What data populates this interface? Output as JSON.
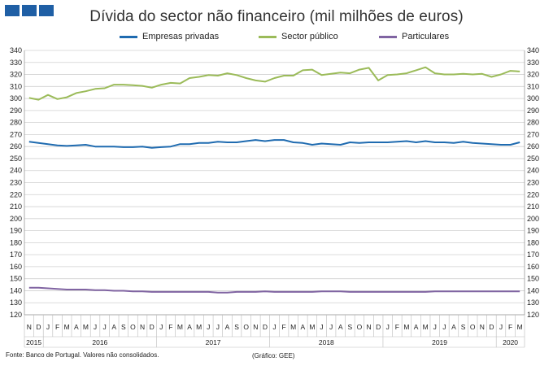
{
  "header": {
    "logo_colors": [
      "#1f5fa5",
      "#1f5fa5",
      "#1f5fa5"
    ],
    "title": "Dívida do sector não financeiro (mil milhões de euros)"
  },
  "footer": {
    "source": "Fonte: Banco de Portugal. Valores não consolidados.",
    "credit": "(Gráfico: GEE)"
  },
  "chart_data": {
    "type": "line",
    "title": "Dívida do sector não financeiro (mil milhões de euros)",
    "ylim": [
      120,
      340
    ],
    "ytick_step": 10,
    "grid": true,
    "legend_position": "top",
    "month_labels": [
      "N",
      "D",
      "J",
      "F",
      "M",
      "A",
      "M",
      "J",
      "J",
      "A",
      "S",
      "O",
      "N",
      "D",
      "J",
      "F",
      "M",
      "A",
      "M",
      "J",
      "J",
      "A",
      "S",
      "O",
      "N",
      "D",
      "J",
      "F",
      "M",
      "A",
      "M",
      "J",
      "J",
      "A",
      "S",
      "O",
      "N",
      "D",
      "J",
      "F",
      "M",
      "A",
      "M",
      "J",
      "J",
      "A",
      "S",
      "O",
      "N",
      "D",
      "J",
      "F",
      "M"
    ],
    "year_labels": [
      {
        "label": "2015",
        "start": 0,
        "end": 1
      },
      {
        "label": "2016",
        "start": 2,
        "end": 13
      },
      {
        "label": "2017",
        "start": 14,
        "end": 25
      },
      {
        "label": "2018",
        "start": 26,
        "end": 37
      },
      {
        "label": "2019",
        "start": 38,
        "end": 49
      },
      {
        "label": "2020",
        "start": 50,
        "end": 52
      }
    ],
    "series": [
      {
        "name": "Empresas privadas",
        "color": "#1f6bb0",
        "values": [
          264,
          263,
          262,
          261,
          260.5,
          261,
          261.5,
          260,
          260,
          260,
          259.5,
          259.5,
          260,
          259,
          259.5,
          260,
          262,
          262,
          263,
          263,
          264,
          263.5,
          263.5,
          264.5,
          265.5,
          264.5,
          265.5,
          265.5,
          263.5,
          263,
          261.5,
          262.5,
          262,
          261.5,
          263.5,
          263,
          263.5,
          263.5,
          263.5,
          264,
          264.5,
          263.5,
          264.5,
          263.5,
          263.5,
          263,
          264,
          263,
          262.5,
          262,
          261.5,
          261.5,
          263.5
        ]
      },
      {
        "name": "Sector público",
        "color": "#9bbb59",
        "values": [
          300.5,
          299,
          303,
          299.5,
          301,
          304.5,
          306,
          308,
          308.5,
          311.5,
          311.5,
          311,
          310.5,
          309,
          311.5,
          313,
          312.5,
          317,
          318,
          319.5,
          319,
          321,
          319.5,
          317,
          315,
          314,
          317,
          319,
          319,
          323.5,
          324,
          319.5,
          320.5,
          321.5,
          321,
          324,
          325.5,
          315,
          319.5,
          320,
          321,
          323.5,
          326,
          321,
          320,
          320,
          320.5,
          320,
          320.5,
          318,
          320,
          323,
          322.5
        ]
      },
      {
        "name": "Particulares",
        "color": "#8064a2",
        "values": [
          142.5,
          142.5,
          142,
          141.5,
          141,
          141,
          141,
          140.5,
          140.5,
          140,
          140,
          139.5,
          139.5,
          139,
          139,
          139,
          139,
          139,
          139,
          139,
          138.5,
          138.5,
          139,
          139,
          139,
          139.5,
          139,
          139,
          139,
          139,
          139,
          139.5,
          139.5,
          139.5,
          139,
          139,
          139,
          139,
          139,
          139,
          139,
          139,
          139,
          139.5,
          139.5,
          139.5,
          139.5,
          139.5,
          139.5,
          139.5,
          139.5,
          139.5,
          139.5
        ]
      }
    ]
  }
}
